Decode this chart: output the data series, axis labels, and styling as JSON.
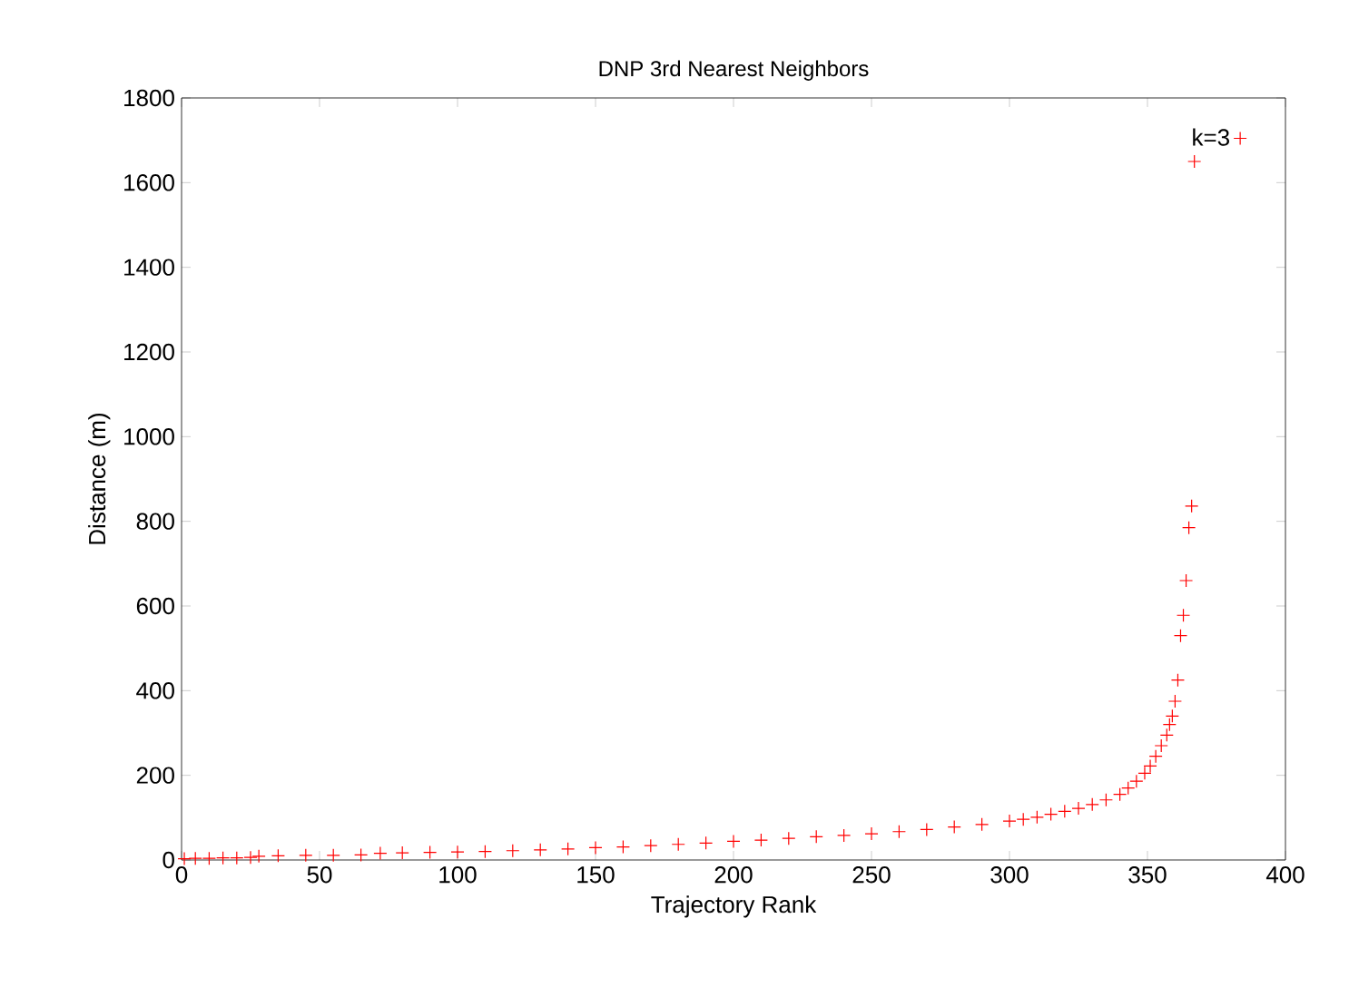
{
  "chart_data": {
    "type": "scatter",
    "title": "DNP 3rd Nearest Neighbors",
    "xlabel": "Trajectory Rank",
    "ylabel": "Distance (m)",
    "xlim": [
      0,
      400
    ],
    "ylim": [
      0,
      1800
    ],
    "xticks": [
      0,
      50,
      100,
      150,
      200,
      250,
      300,
      350,
      400
    ],
    "yticks": [
      0,
      200,
      400,
      600,
      800,
      1000,
      1200,
      1400,
      1600,
      1800
    ],
    "marker": "cross",
    "legend": "top right",
    "grid": false,
    "series": [
      {
        "name": "k=3",
        "color": "#ff0000",
        "x": [
          1,
          5,
          10,
          15,
          20,
          25,
          28,
          35,
          45,
          55,
          65,
          72,
          80,
          90,
          100,
          110,
          120,
          130,
          140,
          150,
          160,
          170,
          180,
          190,
          200,
          210,
          220,
          230,
          240,
          250,
          260,
          270,
          280,
          290,
          300,
          305,
          310,
          315,
          320,
          325,
          330,
          335,
          340,
          343,
          346,
          349,
          351,
          353,
          355,
          357,
          358,
          359,
          360,
          361,
          362,
          363,
          364,
          365,
          366,
          367
        ],
        "values": [
          3,
          4,
          4,
          5,
          5,
          6,
          9,
          10,
          11,
          11,
          12,
          16,
          17,
          18,
          19,
          20,
          22,
          24,
          26,
          29,
          31,
          34,
          37,
          40,
          44,
          47,
          51,
          55,
          58,
          62,
          67,
          72,
          78,
          84,
          92,
          96,
          101,
          108,
          115,
          122,
          131,
          142,
          155,
          170,
          186,
          205,
          222,
          245,
          270,
          295,
          320,
          340,
          375,
          425,
          530,
          578,
          660,
          785,
          836,
          1650
        ]
      }
    ]
  }
}
